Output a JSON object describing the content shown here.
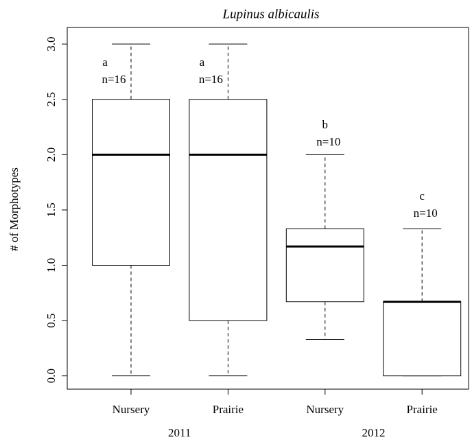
{
  "chart_data": {
    "type": "box",
    "title": "Lupinus albicaulis",
    "y_label": "# of Morphotypes",
    "categories": [
      "Nursery",
      "Prairie",
      "Nursery",
      "Prairie"
    ],
    "group_labels": [
      "2011",
      "2012"
    ],
    "boxes": [
      {
        "min": 0,
        "q1": 1.0,
        "median": 2.0,
        "q3": 2.5,
        "max": 3.0
      },
      {
        "min": 0,
        "q1": 0.5,
        "median": 2.0,
        "q3": 2.5,
        "max": 3.0
      },
      {
        "min": 0.33,
        "q1": 0.67,
        "median": 1.17,
        "q3": 1.33,
        "max": 2.0
      },
      {
        "min": 0,
        "q1": 0,
        "median": 0.67,
        "q3": 0.67,
        "max": 1.33
      }
    ],
    "letters": [
      "a",
      "a",
      "b",
      "c"
    ],
    "n_labels": [
      "n=16",
      "n=16",
      "n=10",
      "n=10"
    ],
    "ylim": [
      -0.12,
      3.15
    ],
    "yticks": [
      {
        "value": 0,
        "label": "0.0"
      },
      0.5,
      {
        "value": 1,
        "label": "1.0"
      },
      1.5,
      {
        "value": 2,
        "label": "2.0"
      },
      2.5,
      {
        "value": 3,
        "label": "3.0"
      }
    ],
    "color": "#ffffff"
  }
}
